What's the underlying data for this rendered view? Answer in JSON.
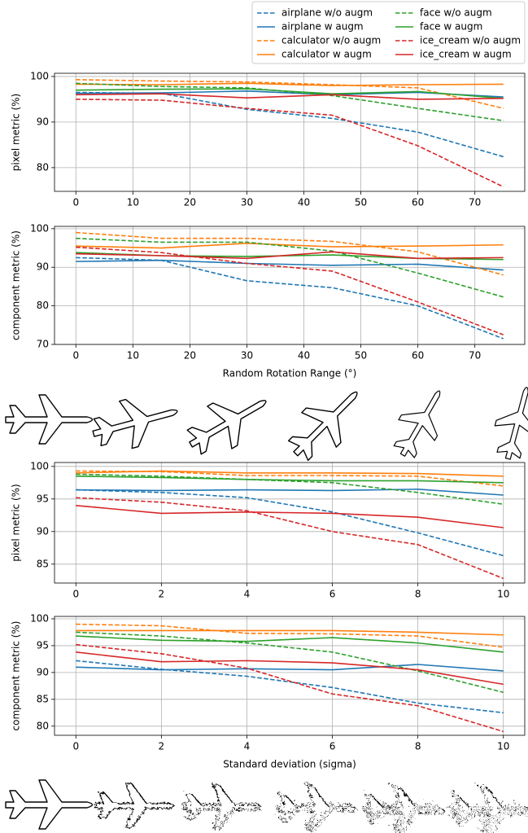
{
  "chart_data": [
    {
      "type": "line",
      "ylabel": "pixel metric (%)",
      "legend": "above right",
      "grid": true,
      "x": [
        0,
        15,
        30,
        45,
        60,
        75
      ],
      "xlim": [
        -3.75,
        78.75
      ],
      "xticks": [
        0,
        10,
        20,
        30,
        40,
        50,
        60,
        70
      ],
      "ylim": [
        74.8,
        100.7
      ],
      "yticks": [
        80,
        90,
        100
      ],
      "series": [
        {
          "name": "airplane w/o augm",
          "color": "#1f77b4",
          "linestyle": "dashed",
          "values": [
            96.5,
            96.3,
            92.8,
            90.8,
            87.8,
            82.4
          ]
        },
        {
          "name": "airplane w augm",
          "color": "#1f77b4",
          "linestyle": "solid",
          "values": [
            96.3,
            96.4,
            96.8,
            96.0,
            96.5,
            95.5
          ]
        },
        {
          "name": "calculator w/o augm",
          "color": "#ff7f0e",
          "linestyle": "dashed",
          "values": [
            99.3,
            99.0,
            98.8,
            98.2,
            97.5,
            93.0
          ]
        },
        {
          "name": "calculator w augm",
          "color": "#ff7f0e",
          "linestyle": "solid",
          "values": [
            98.3,
            98.2,
            98.5,
            98.0,
            98.2,
            98.3
          ]
        },
        {
          "name": "face w/o augm",
          "color": "#2ca02c",
          "linestyle": "dashed",
          "values": [
            98.5,
            97.8,
            97.5,
            95.8,
            93.0,
            90.3
          ]
        },
        {
          "name": "face w augm",
          "color": "#2ca02c",
          "linestyle": "solid",
          "values": [
            97.0,
            97.2,
            97.3,
            96.2,
            96.7,
            95.2
          ]
        },
        {
          "name": "ice_cream w/o augm",
          "color": "#d62728",
          "linestyle": "dashed",
          "values": [
            95.0,
            94.8,
            93.0,
            91.5,
            84.8,
            75.8
          ]
        },
        {
          "name": "ice_cream w augm",
          "color": "#d62728",
          "linestyle": "solid",
          "values": [
            96.0,
            96.2,
            95.3,
            96.0,
            95.0,
            95.2
          ]
        }
      ]
    },
    {
      "type": "line",
      "ylabel": "component metric (%)",
      "xlabel": "Random Rotation Range (°)",
      "grid": true,
      "x": [
        0,
        15,
        30,
        45,
        60,
        75
      ],
      "xlim": [
        -3.75,
        78.75
      ],
      "xticks": [
        0,
        10,
        20,
        30,
        40,
        50,
        60,
        70
      ],
      "ylim": [
        70,
        100.6
      ],
      "yticks": [
        70,
        80,
        90,
        100
      ],
      "series": [
        {
          "name": "airplane w/o augm",
          "color": "#1f77b4",
          "linestyle": "dashed",
          "values": [
            92.5,
            91.8,
            86.5,
            84.7,
            80.0,
            71.5
          ]
        },
        {
          "name": "airplane w augm",
          "color": "#1f77b4",
          "linestyle": "solid",
          "values": [
            91.5,
            91.8,
            91.0,
            90.5,
            90.8,
            89.3
          ]
        },
        {
          "name": "calculator w/o augm",
          "color": "#ff7f0e",
          "linestyle": "dashed",
          "values": [
            99.0,
            97.5,
            97.5,
            96.7,
            94.0,
            88.0
          ]
        },
        {
          "name": "calculator w augm",
          "color": "#ff7f0e",
          "linestyle": "solid",
          "values": [
            95.5,
            95.0,
            96.2,
            95.3,
            95.5,
            95.8
          ]
        },
        {
          "name": "face w/o augm",
          "color": "#2ca02c",
          "linestyle": "dashed",
          "values": [
            97.5,
            96.5,
            96.5,
            94.2,
            88.5,
            82.3
          ]
        },
        {
          "name": "face w augm",
          "color": "#2ca02c",
          "linestyle": "solid",
          "values": [
            93.8,
            93.0,
            92.8,
            93.2,
            92.3,
            92.0
          ]
        },
        {
          "name": "ice_cream w/o augm",
          "color": "#d62728",
          "linestyle": "dashed",
          "values": [
            95.2,
            93.8,
            91.0,
            89.0,
            81.0,
            72.5
          ]
        },
        {
          "name": "ice_cream w augm",
          "color": "#d62728",
          "linestyle": "solid",
          "values": [
            93.5,
            93.0,
            92.3,
            94.0,
            92.3,
            92.5
          ]
        }
      ]
    },
    {
      "type": "line",
      "ylabel": "pixel metric (%)",
      "grid": true,
      "x": [
        0,
        2,
        4,
        6,
        8,
        10
      ],
      "xlim": [
        -0.5,
        10.5
      ],
      "xticks": [
        0,
        2,
        4,
        6,
        8,
        10
      ],
      "ylim": [
        82.1,
        100.6
      ],
      "yticks": [
        85,
        90,
        95,
        100
      ],
      "series": [
        {
          "name": "airplane w/o augm",
          "color": "#1f77b4",
          "linestyle": "dashed",
          "values": [
            96.4,
            96.0,
            95.2,
            93.0,
            89.8,
            86.3
          ]
        },
        {
          "name": "airplane w augm",
          "color": "#1f77b4",
          "linestyle": "solid",
          "values": [
            96.4,
            96.3,
            96.4,
            96.3,
            96.5,
            95.6
          ]
        },
        {
          "name": "calculator w/o augm",
          "color": "#ff7f0e",
          "linestyle": "dashed",
          "values": [
            99.3,
            99.2,
            98.6,
            98.6,
            98.5,
            97.0
          ]
        },
        {
          "name": "calculator w augm",
          "color": "#ff7f0e",
          "linestyle": "solid",
          "values": [
            99.0,
            99.3,
            99.0,
            99.0,
            98.9,
            98.5
          ]
        },
        {
          "name": "face w/o augm",
          "color": "#2ca02c",
          "linestyle": "dashed",
          "values": [
            98.8,
            98.5,
            98.0,
            97.5,
            96.0,
            94.2
          ]
        },
        {
          "name": "face w augm",
          "color": "#2ca02c",
          "linestyle": "solid",
          "values": [
            98.5,
            98.3,
            98.0,
            97.8,
            97.8,
            97.5
          ]
        },
        {
          "name": "ice_cream w/o augm",
          "color": "#d62728",
          "linestyle": "dashed",
          "values": [
            95.2,
            94.5,
            93.2,
            90.0,
            88.0,
            82.8
          ]
        },
        {
          "name": "ice_cream w augm",
          "color": "#d62728",
          "linestyle": "solid",
          "values": [
            94.0,
            92.8,
            93.0,
            92.8,
            92.2,
            90.6
          ]
        }
      ]
    },
    {
      "type": "line",
      "ylabel": "component metric (%)",
      "xlabel": "Standard deviation (sigma)",
      "grid": true,
      "x": [
        0,
        2,
        4,
        6,
        8,
        10
      ],
      "xlim": [
        -0.5,
        10.5
      ],
      "xticks": [
        0,
        2,
        4,
        6,
        8,
        10
      ],
      "ylim": [
        78.3,
        100.45
      ],
      "yticks": [
        80,
        85,
        90,
        95,
        100
      ],
      "series": [
        {
          "name": "airplane w/o augm",
          "color": "#1f77b4",
          "linestyle": "dashed",
          "values": [
            92.2,
            90.6,
            89.3,
            87.2,
            84.3,
            82.5
          ]
        },
        {
          "name": "airplane w augm",
          "color": "#1f77b4",
          "linestyle": "solid",
          "values": [
            91.0,
            90.5,
            90.7,
            90.5,
            91.5,
            90.3
          ]
        },
        {
          "name": "calculator w/o augm",
          "color": "#ff7f0e",
          "linestyle": "dashed",
          "values": [
            99.0,
            98.7,
            97.3,
            97.2,
            96.8,
            94.7
          ]
        },
        {
          "name": "calculator w augm",
          "color": "#ff7f0e",
          "linestyle": "solid",
          "values": [
            97.8,
            97.8,
            97.8,
            97.8,
            97.5,
            97.0
          ]
        },
        {
          "name": "face w/o augm",
          "color": "#2ca02c",
          "linestyle": "dashed",
          "values": [
            97.5,
            96.8,
            95.5,
            93.8,
            90.3,
            86.3
          ]
        },
        {
          "name": "face w augm",
          "color": "#2ca02c",
          "linestyle": "solid",
          "values": [
            96.8,
            96.0,
            95.8,
            96.5,
            95.5,
            93.8
          ]
        },
        {
          "name": "ice_cream w/o augm",
          "color": "#d62728",
          "linestyle": "dashed",
          "values": [
            95.2,
            93.5,
            90.8,
            86.0,
            83.8,
            79.0
          ]
        },
        {
          "name": "ice_cream w augm",
          "color": "#d62728",
          "linestyle": "solid",
          "values": [
            93.8,
            92.0,
            92.2,
            91.8,
            90.5,
            87.8
          ]
        }
      ]
    }
  ]
}
